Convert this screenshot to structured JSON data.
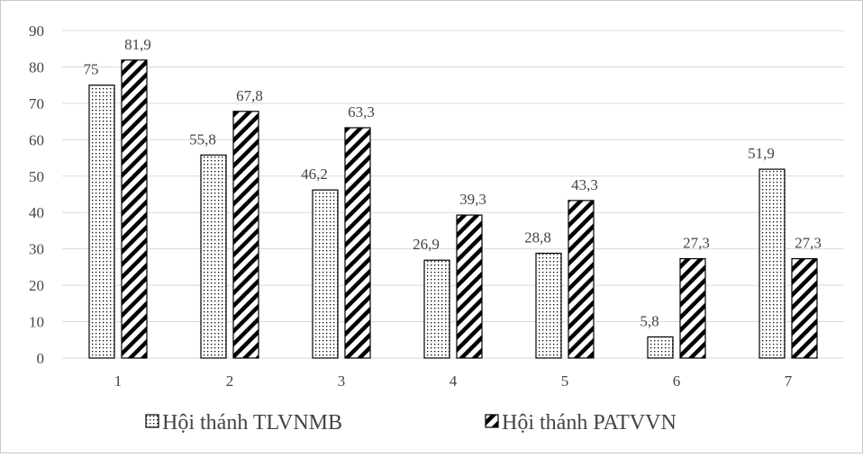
{
  "chart_data": {
    "type": "bar",
    "categories": [
      "1",
      "2",
      "3",
      "4",
      "5",
      "6",
      "7"
    ],
    "series": [
      {
        "name": "Hội thánh TLVNMB",
        "values": [
          75,
          55.8,
          46.2,
          26.9,
          28.8,
          5.8,
          51.9
        ],
        "labels": [
          "75",
          "55,8",
          "46,2",
          "26,9",
          "28,8",
          "5,8",
          "51,9"
        ],
        "pattern": "dots"
      },
      {
        "name": "Hội thánh PATVVN",
        "values": [
          81.9,
          67.8,
          63.3,
          39.3,
          43.3,
          27.3,
          27.3
        ],
        "labels": [
          "81,9",
          "67,8",
          "63,3",
          "39,3",
          "43,3",
          "27,3",
          "27,3"
        ],
        "pattern": "diagonal-stripes"
      }
    ],
    "ylim": [
      0,
      90
    ],
    "yticks": [
      0,
      10,
      20,
      30,
      40,
      50,
      60,
      70,
      80,
      90
    ],
    "grid": true,
    "legend_position": "bottom",
    "colors": {
      "grid": "#d9d9d9",
      "bar_outline": "#000000",
      "text": "#444444"
    }
  }
}
